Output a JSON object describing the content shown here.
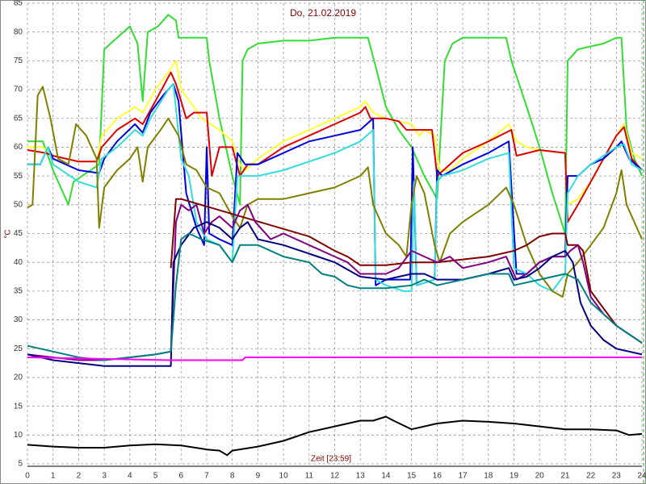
{
  "chart_data": {
    "type": "line",
    "title": "Do, 21.02.2019",
    "x_label": "Zeit [23:59]",
    "y_label": "°C",
    "xlim": [
      0,
      24
    ],
    "ylim": [
      5,
      85
    ],
    "xticks": [
      0,
      1,
      2,
      3,
      4,
      5,
      6,
      7,
      8,
      9,
      10,
      11,
      12,
      13,
      14,
      15,
      16,
      17,
      18,
      19,
      20,
      21,
      22,
      23,
      24
    ],
    "yticks": [
      5,
      10,
      15,
      20,
      25,
      30,
      35,
      40,
      45,
      50,
      55,
      60,
      65,
      70,
      75,
      80,
      85
    ],
    "grid": true,
    "series": [
      {
        "color": "#33dd33",
        "x": [
          0,
          0.6,
          1.0,
          1.6,
          1.8,
          2.8,
          3.0,
          4.0,
          4.3,
          4.5,
          4.7,
          5.1,
          5.5,
          5.8,
          5.9,
          6.5,
          7.0,
          7.1,
          7.5,
          8.0,
          8.3,
          8.4,
          8.6,
          9,
          10,
          11,
          12,
          13.3,
          13.6,
          14,
          14.5,
          15,
          15.5,
          16.0,
          16.3,
          16.6,
          17,
          18,
          18.7,
          18.9,
          19.5,
          20,
          20.5,
          21,
          21.1,
          21.5,
          22,
          22.5,
          23,
          23.2,
          23.4,
          23.7,
          24
        ],
        "values": [
          61,
          61,
          56,
          50,
          54,
          57,
          77,
          81,
          78,
          68,
          80,
          81,
          83,
          82,
          79,
          79,
          79,
          75,
          65,
          55,
          50,
          75,
          77,
          78,
          78.5,
          78.5,
          79,
          79,
          74,
          67,
          63,
          60,
          55,
          51,
          75,
          78,
          79,
          79,
          79,
          75,
          67,
          60,
          52,
          45,
          75,
          77,
          77.5,
          78,
          79,
          79,
          63,
          58,
          55
        ]
      },
      {
        "color": "#ffff33",
        "x": [
          0,
          0.6,
          1,
          2,
          2.7,
          2.9,
          3.5,
          4.2,
          4.5,
          5,
          5.5,
          5.8,
          6,
          6.5,
          6.8,
          7.5,
          8,
          8.3,
          8.5,
          9,
          10,
          11,
          12,
          13,
          13.2,
          13.5,
          14,
          15,
          15.3,
          15.5,
          15.9,
          16.1,
          16.5,
          17,
          18,
          18.8,
          19.1,
          19.5,
          20,
          21,
          21.1,
          21.5,
          22,
          22.5,
          23,
          23.3,
          23.6,
          24
        ],
        "values": [
          60,
          60,
          58.5,
          57.5,
          57.5,
          62,
          65,
          67,
          66,
          70,
          73,
          75,
          70,
          67,
          65,
          63,
          61,
          57,
          56,
          58,
          61,
          63,
          65,
          67,
          68,
          66,
          65,
          64,
          62,
          63,
          62,
          56,
          56,
          58,
          61,
          64,
          61,
          60,
          59.5,
          59,
          50,
          51,
          54,
          58,
          62,
          64,
          59,
          58
        ]
      },
      {
        "color": "#dd0000",
        "x": [
          0,
          0.7,
          1,
          2,
          2.7,
          2.9,
          3.5,
          4.2,
          4.5,
          5,
          5.6,
          5.8,
          6.2,
          6.5,
          7,
          7.2,
          7.5,
          8,
          8.3,
          8.6,
          9,
          10,
          11,
          12,
          13,
          13.2,
          13.4,
          14,
          14.5,
          14.8,
          15.8,
          16.0,
          16.5,
          17,
          18,
          18.9,
          19.1,
          20,
          21,
          21.1,
          21.5,
          22,
          22.5,
          23,
          23.3,
          23.6,
          24
        ],
        "values": [
          59.5,
          59,
          58.5,
          57.5,
          57.5,
          60,
          63,
          65,
          64,
          68,
          73,
          71,
          65,
          66,
          66,
          55,
          60,
          60,
          55,
          57,
          57,
          60,
          62,
          64,
          66,
          67,
          65,
          65,
          64.5,
          63,
          63,
          55,
          57,
          59,
          61,
          63,
          58.5,
          59.5,
          59,
          47,
          50,
          54,
          58,
          62,
          63.5,
          58,
          56
        ]
      },
      {
        "color": "#0000dd",
        "x": [
          0,
          0.5,
          0.8,
          1,
          2,
          2.8,
          3,
          3.5,
          4.2,
          4.5,
          4.8,
          5.3,
          5.7,
          5.9,
          6.2,
          6.6,
          6.9,
          7.0,
          7.1,
          7.5,
          8,
          8.2,
          8.5,
          9,
          10,
          11,
          12,
          13,
          13.5,
          13.6,
          14,
          14.95,
          15.05,
          15.2,
          15.9,
          16.0,
          16.2,
          17,
          18,
          18.8,
          19.1,
          19.5,
          20,
          20.5,
          21,
          21.1,
          21.5,
          22,
          22.5,
          23,
          23.2,
          23.5,
          24
        ],
        "values": [
          57,
          57,
          60,
          58,
          56,
          55.5,
          58,
          61,
          64,
          62.5,
          66,
          69,
          71,
          68,
          52,
          46,
          43,
          60,
          45,
          44,
          43,
          59,
          57,
          57,
          59,
          61,
          62,
          63,
          65,
          36,
          37,
          37,
          60,
          36,
          37,
          56,
          55,
          57,
          59,
          61,
          38,
          38,
          40,
          41,
          41,
          55,
          55,
          57,
          58,
          60,
          61,
          58,
          56
        ]
      },
      {
        "color": "#33dddd",
        "x": [
          0,
          0.5,
          0.8,
          1,
          2,
          2.7,
          2.9,
          3.5,
          4.2,
          4.5,
          4.8,
          5.5,
          5.7,
          6,
          6.3,
          6.6,
          7,
          7.5,
          8.0,
          8.2,
          8.5,
          9,
          10,
          11,
          12,
          13,
          13.5,
          13.6,
          14,
          14.7,
          15.0,
          15.1,
          15.2,
          15.9,
          16.0,
          16.2,
          17,
          18,
          18.8,
          19.0,
          19.5,
          20,
          20.5,
          21,
          21.1,
          21.5,
          22,
          23,
          23.3,
          23.6,
          24
        ],
        "values": [
          57,
          57,
          60,
          57,
          54,
          53,
          58,
          60,
          63,
          62,
          65,
          70,
          71,
          58,
          55,
          47,
          44,
          43,
          40,
          55,
          55,
          55,
          56,
          57.5,
          59,
          61,
          63,
          37,
          36,
          35,
          35,
          54,
          36,
          37,
          54,
          55,
          56,
          58,
          59,
          39,
          38,
          36,
          35,
          38,
          52,
          55,
          57,
          60,
          60.5,
          57,
          56
        ]
      },
      {
        "color": "#808000",
        "x": [
          0,
          0.2,
          0.4,
          0.6,
          0.9,
          1.2,
          1.6,
          1.9,
          2.3,
          2.7,
          2.8,
          3.0,
          3.5,
          4.0,
          4.3,
          4.5,
          4.7,
          5.2,
          5.5,
          5.9,
          6.2,
          6.6,
          7.0,
          7.5,
          8.0,
          8.3,
          8.6,
          9,
          10,
          11,
          12,
          13,
          13.3,
          13.5,
          14,
          14.5,
          14.8,
          15.0,
          15.2,
          15.5,
          15.9,
          16.1,
          16.5,
          17,
          18,
          18.7,
          19.0,
          19.5,
          20,
          20.5,
          20.9,
          21.1,
          21.5,
          22,
          22.5,
          23,
          23.2,
          23.4,
          24
        ],
        "values": [
          49.5,
          50,
          69,
          70.5,
          65,
          58,
          57,
          64,
          62,
          58,
          46,
          53,
          56,
          58,
          60,
          54,
          60,
          63,
          65,
          62,
          57,
          56,
          53,
          52,
          48,
          46,
          50,
          51,
          51,
          52,
          53,
          55,
          56.5,
          50,
          45,
          43,
          41,
          50,
          55,
          52,
          43,
          40,
          45,
          47,
          50,
          53,
          50,
          43,
          38,
          35,
          34,
          38,
          40,
          43,
          46,
          52,
          56,
          50,
          44
        ]
      },
      {
        "color": "#800000",
        "x": [
          5.6,
          5.8,
          6,
          11,
          12,
          12.5,
          13,
          14,
          15,
          16,
          17,
          18,
          19,
          19.5,
          20,
          20.5,
          21,
          21.1,
          21.5,
          21.7,
          22,
          22.5,
          23,
          23.5,
          24
        ],
        "values": [
          39,
          51,
          51,
          44.5,
          42,
          41,
          39.5,
          39.5,
          40,
          40,
          40.5,
          41,
          42,
          43,
          44.5,
          45,
          45,
          43,
          43,
          42,
          35,
          32,
          29,
          27.5,
          26
        ]
      },
      {
        "color": "#800080",
        "x": [
          0,
          1,
          2,
          3,
          4,
          5,
          5.6,
          5.8,
          6.0,
          6.3,
          6.6,
          6.9,
          7.2,
          7.5,
          8,
          8.3,
          8.6,
          8.9,
          9.5,
          10,
          11,
          12,
          12.5,
          13,
          14,
          14.5,
          15,
          15.5,
          16,
          16.5,
          17,
          18,
          18.7,
          19.1,
          19.5,
          20,
          20.5,
          21,
          21.2,
          21.5,
          21.7,
          22,
          22.5,
          23,
          23.5,
          24
        ],
        "values": [
          24,
          23.5,
          23,
          23,
          23.5,
          24,
          24.5,
          47,
          50,
          49,
          50,
          45,
          47,
          48,
          46,
          49,
          50,
          47,
          44,
          45,
          43,
          41,
          40,
          38,
          38,
          39,
          42,
          41,
          40,
          41,
          39,
          40,
          41,
          37,
          38,
          40,
          41,
          41,
          42,
          43,
          40,
          34,
          31,
          29,
          27.5,
          26
        ]
      },
      {
        "color": "#000080",
        "x": [
          0,
          1,
          2,
          3,
          4,
          5,
          5.6,
          5.7,
          6,
          6.5,
          7,
          7.5,
          8,
          8.3,
          8.6,
          9,
          10,
          11,
          12,
          13,
          14,
          15,
          15.5,
          16,
          17,
          18,
          18.8,
          19,
          19.5,
          20,
          20.5,
          21,
          21.3,
          21.6,
          22,
          22.5,
          23,
          23.5,
          24
        ],
        "values": [
          24,
          23,
          22.5,
          22,
          22,
          22,
          22,
          40,
          43,
          46,
          47,
          46,
          44,
          46,
          47,
          44,
          43,
          41.5,
          40,
          37.5,
          37,
          38,
          38,
          37,
          37,
          38,
          39,
          37,
          37.5,
          39,
          41,
          42,
          40,
          33,
          29,
          26.5,
          25,
          24.5,
          24
        ]
      },
      {
        "color": "#008080",
        "x": [
          0,
          1,
          2,
          3,
          4,
          5,
          5.6,
          5.8,
          6,
          6.3,
          6.8,
          7.5,
          8,
          8.3,
          9,
          10,
          11,
          11.5,
          12,
          12.5,
          13,
          14,
          15,
          15.5,
          16,
          17,
          18,
          18.8,
          19,
          20,
          21,
          21.5,
          22,
          22.5,
          23,
          23.5,
          24
        ],
        "values": [
          25.5,
          24.5,
          23.5,
          23,
          23.5,
          24,
          24.5,
          36,
          44,
          45,
          44,
          43,
          40,
          43,
          43,
          41,
          40,
          38,
          37.5,
          36,
          35.5,
          35.5,
          36,
          37,
          36,
          37,
          38,
          38,
          36,
          37,
          38,
          37,
          33,
          31,
          29,
          27.5,
          26
        ]
      },
      {
        "color": "#ff00ff",
        "x": [
          0,
          5.6,
          8.4,
          8.5,
          13,
          24
        ],
        "values": [
          23.5,
          23,
          23,
          23.5,
          23.5,
          23.5
        ]
      },
      {
        "color": "#000000",
        "x": [
          0,
          1,
          2,
          3,
          4,
          5,
          6,
          7,
          7.5,
          7.8,
          8,
          9,
          10,
          11,
          12,
          13,
          13.5,
          14,
          14.3,
          15,
          16,
          17,
          18,
          19,
          20,
          21,
          22,
          23,
          23.5,
          24
        ],
        "values": [
          8.3,
          8,
          7.8,
          7.8,
          8.2,
          8.4,
          8.2,
          7.5,
          7.3,
          6.5,
          7.3,
          8,
          9,
          10.5,
          11.5,
          12.5,
          12.5,
          13.2,
          12.5,
          11,
          12,
          12.5,
          12.3,
          12,
          11.5,
          11,
          11,
          10.8,
          10,
          10.2
        ]
      }
    ]
  }
}
